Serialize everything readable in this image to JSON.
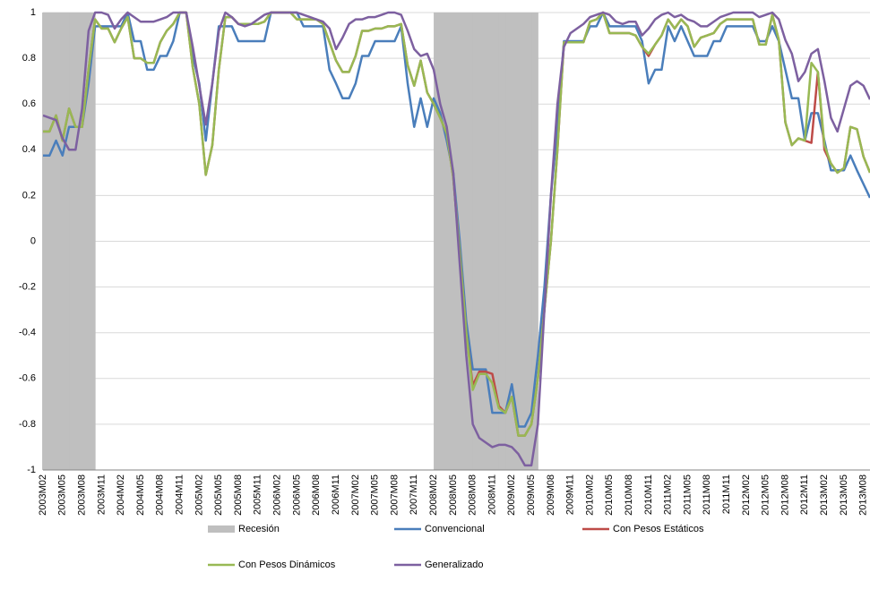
{
  "chart_data": {
    "type": "line",
    "categories": [
      "2003M02",
      null,
      null,
      "2003M05",
      null,
      null,
      "2003M08",
      null,
      null,
      "2003M11",
      null,
      null,
      "2004M02",
      null,
      null,
      "2004M05",
      null,
      null,
      "2004M08",
      null,
      null,
      "2004M11",
      null,
      null,
      "2005M02",
      null,
      null,
      "2005M05",
      null,
      null,
      "2005M08",
      null,
      null,
      "2005M11",
      null,
      null,
      "2006M02",
      null,
      null,
      "2006M05",
      null,
      null,
      "2006M08",
      null,
      null,
      "2006M11",
      null,
      null,
      "2007M02",
      null,
      null,
      "2007M05",
      null,
      null,
      "2007M08",
      null,
      null,
      "2007M11",
      null,
      null,
      "2008M02",
      null,
      null,
      "2008M05",
      null,
      null,
      "2008M08",
      null,
      null,
      "2008M11",
      null,
      null,
      "2009M02",
      null,
      null,
      "2009M05",
      null,
      null,
      "2009M08",
      null,
      null,
      "2009M11",
      null,
      null,
      "2010M02",
      null,
      null,
      "2010M05",
      null,
      null,
      "2010M08",
      null,
      null,
      "2010M11",
      null,
      null,
      "2011M02",
      null,
      null,
      "2011M05",
      null,
      null,
      "2011M08",
      null,
      null,
      "2011M11",
      null,
      null,
      "2012M02",
      null,
      null,
      "2012M05",
      null,
      null,
      "2012M08",
      null,
      null,
      "2012M11",
      null,
      null,
      "2013M02",
      null,
      null,
      "2013M05",
      null,
      null,
      "2013M08",
      null
    ],
    "series": [
      {
        "name": "Recesión",
        "type": "bar",
        "color": "#bfbfbf",
        "values": [
          1,
          1,
          1,
          1,
          1,
          1,
          1,
          1,
          null,
          null,
          null,
          null,
          null,
          null,
          null,
          null,
          null,
          null,
          null,
          null,
          null,
          null,
          null,
          null,
          null,
          null,
          null,
          null,
          null,
          null,
          null,
          null,
          null,
          null,
          null,
          null,
          null,
          null,
          null,
          null,
          null,
          null,
          null,
          null,
          null,
          null,
          null,
          null,
          null,
          null,
          null,
          null,
          null,
          null,
          null,
          null,
          null,
          null,
          null,
          null,
          1,
          1,
          1,
          1,
          1,
          1,
          1,
          1,
          1,
          1,
          1,
          1,
          1,
          1,
          1,
          1,
          null,
          null,
          null,
          null,
          null,
          null,
          null,
          null,
          null,
          null,
          null,
          null,
          null,
          null,
          null,
          null,
          null,
          null,
          null,
          null,
          null,
          null,
          null,
          null,
          null,
          null,
          null,
          null,
          null,
          null,
          null,
          null,
          null,
          null,
          null,
          null,
          null,
          null,
          null,
          null,
          null,
          null,
          null,
          null,
          null,
          null,
          null,
          null,
          null,
          null,
          null,
          null
        ]
      },
      {
        "name": "Convencional",
        "type": "line",
        "color": "#4a7ebb",
        "values": [
          0.375,
          0.375,
          0.44,
          0.375,
          0.5,
          0.5,
          0.5,
          0.69,
          0.94,
          0.94,
          0.94,
          0.94,
          0.94,
          1,
          0.875,
          0.875,
          0.75,
          0.75,
          0.81,
          0.81,
          0.875,
          1,
          1,
          0.81,
          0.69,
          0.44,
          0.69,
          0.94,
          0.94,
          0.94,
          0.875,
          0.875,
          0.875,
          0.875,
          0.875,
          1,
          1,
          1,
          1,
          1,
          0.94,
          0.94,
          0.94,
          0.94,
          0.75,
          0.69,
          0.625,
          0.625,
          0.69,
          0.81,
          0.81,
          0.875,
          0.875,
          0.875,
          0.875,
          0.94,
          0.69,
          0.5,
          0.625,
          0.5,
          0.625,
          0.56,
          0.44,
          0.3,
          0,
          -0.35,
          -0.56,
          -0.56,
          -0.56,
          -0.75,
          -0.75,
          -0.75,
          -0.625,
          -0.81,
          -0.81,
          -0.75,
          -0.5,
          -0.2,
          0.2,
          0.5,
          0.875,
          0.875,
          0.875,
          0.875,
          0.94,
          0.94,
          1,
          0.94,
          0.94,
          0.94,
          0.94,
          0.94,
          0.875,
          0.69,
          0.75,
          0.75,
          0.94,
          0.875,
          0.94,
          0.875,
          0.81,
          0.81,
          0.81,
          0.875,
          0.875,
          0.94,
          0.94,
          0.94,
          0.94,
          0.94,
          0.875,
          0.875,
          0.94,
          0.875,
          0.75,
          0.625,
          0.625,
          0.44,
          0.56,
          0.56,
          0.44,
          0.31,
          0.31,
          0.31,
          0.375,
          0.31,
          0.25,
          0.19
        ]
      },
      {
        "name": "Con Pesos Estáticos",
        "type": "line",
        "color": "#be4b48",
        "values": [
          0.48,
          0.48,
          0.55,
          0.44,
          0.58,
          0.5,
          0.5,
          0.75,
          0.97,
          0.93,
          0.93,
          0.87,
          0.93,
          0.98,
          0.8,
          0.8,
          0.78,
          0.78,
          0.87,
          0.92,
          0.95,
          1,
          1,
          0.76,
          0.6,
          0.29,
          0.42,
          0.75,
          0.98,
          0.98,
          0.95,
          0.95,
          0.95,
          0.95,
          0.96,
          1,
          1,
          1,
          1,
          0.97,
          0.97,
          0.97,
          0.97,
          0.95,
          0.87,
          0.79,
          0.74,
          0.74,
          0.81,
          0.92,
          0.92,
          0.93,
          0.93,
          0.94,
          0.94,
          0.95,
          0.77,
          0.68,
          0.79,
          0.65,
          0.6,
          0.54,
          0.47,
          0.28,
          -0.05,
          -0.4,
          -0.63,
          -0.57,
          -0.57,
          -0.58,
          -0.72,
          -0.75,
          -0.68,
          -0.85,
          -0.85,
          -0.8,
          -0.6,
          -0.3,
          0,
          0.4,
          0.87,
          0.87,
          0.87,
          0.87,
          0.96,
          0.97,
          1,
          0.91,
          0.91,
          0.91,
          0.91,
          0.9,
          0.85,
          0.81,
          0.86,
          0.9,
          0.97,
          0.93,
          0.97,
          0.94,
          0.85,
          0.89,
          0.9,
          0.91,
          0.95,
          0.97,
          0.97,
          0.97,
          0.97,
          0.97,
          0.86,
          0.86,
          0.99,
          0.88,
          0.52,
          0.42,
          0.45,
          0.44,
          0.43,
          0.74,
          0.4,
          0.34,
          0.3,
          0.32,
          0.5,
          0.49,
          0.37,
          0.3
        ]
      },
      {
        "name": "Con Pesos Dinámicos",
        "type": "line",
        "color": "#98b954",
        "values": [
          0.48,
          0.48,
          0.55,
          0.44,
          0.58,
          0.5,
          0.5,
          0.75,
          0.97,
          0.93,
          0.93,
          0.87,
          0.93,
          0.98,
          0.8,
          0.8,
          0.78,
          0.78,
          0.87,
          0.92,
          0.95,
          1,
          1,
          0.76,
          0.6,
          0.29,
          0.42,
          0.75,
          0.98,
          0.98,
          0.95,
          0.95,
          0.95,
          0.95,
          0.96,
          1,
          1,
          1,
          1,
          0.97,
          0.97,
          0.97,
          0.97,
          0.95,
          0.87,
          0.79,
          0.74,
          0.74,
          0.81,
          0.92,
          0.92,
          0.93,
          0.93,
          0.94,
          0.94,
          0.95,
          0.77,
          0.68,
          0.79,
          0.65,
          0.6,
          0.54,
          0.47,
          0.28,
          -0.05,
          -0.4,
          -0.65,
          -0.58,
          -0.58,
          -0.62,
          -0.73,
          -0.75,
          -0.68,
          -0.85,
          -0.85,
          -0.8,
          -0.6,
          -0.3,
          0,
          0.4,
          0.87,
          0.87,
          0.87,
          0.87,
          0.96,
          0.97,
          1,
          0.91,
          0.91,
          0.91,
          0.91,
          0.9,
          0.85,
          0.82,
          0.86,
          0.9,
          0.97,
          0.93,
          0.97,
          0.94,
          0.85,
          0.89,
          0.9,
          0.91,
          0.95,
          0.97,
          0.97,
          0.97,
          0.97,
          0.97,
          0.86,
          0.86,
          0.99,
          0.88,
          0.52,
          0.42,
          0.45,
          0.44,
          0.78,
          0.74,
          0.42,
          0.34,
          0.3,
          0.32,
          0.5,
          0.49,
          0.37,
          0.3
        ]
      },
      {
        "name": "Generalizado",
        "type": "line",
        "color": "#7d60a0",
        "values": [
          0.55,
          0.54,
          0.53,
          0.45,
          0.4,
          0.4,
          0.58,
          0.92,
          1,
          1,
          0.99,
          0.93,
          0.97,
          1,
          0.98,
          0.96,
          0.96,
          0.96,
          0.97,
          0.98,
          1,
          1,
          1,
          0.85,
          0.68,
          0.51,
          0.69,
          0.92,
          1,
          0.98,
          0.95,
          0.94,
          0.95,
          0.97,
          0.99,
          1,
          1,
          1,
          1,
          1,
          0.99,
          0.98,
          0.97,
          0.96,
          0.93,
          0.84,
          0.89,
          0.95,
          0.97,
          0.97,
          0.98,
          0.98,
          0.99,
          1,
          1,
          0.99,
          0.92,
          0.84,
          0.81,
          0.82,
          0.75,
          0.6,
          0.5,
          0.3,
          -0.1,
          -0.5,
          -0.8,
          -0.86,
          -0.88,
          -0.9,
          -0.89,
          -0.89,
          -0.9,
          -0.93,
          -0.98,
          -0.98,
          -0.8,
          -0.3,
          0.2,
          0.6,
          0.85,
          0.91,
          0.93,
          0.95,
          0.98,
          0.99,
          1,
          0.99,
          0.96,
          0.95,
          0.96,
          0.96,
          0.9,
          0.93,
          0.97,
          0.99,
          1,
          0.98,
          0.99,
          0.97,
          0.96,
          0.94,
          0.94,
          0.96,
          0.98,
          0.99,
          1,
          1,
          1,
          1,
          0.98,
          0.99,
          1,
          0.97,
          0.88,
          0.82,
          0.7,
          0.74,
          0.82,
          0.84,
          0.7,
          0.54,
          0.48,
          0.58,
          0.68,
          0.7,
          0.68,
          0.62
        ]
      }
    ],
    "ylim": [
      -1,
      1
    ],
    "yticks": [
      -1,
      -0.8,
      -0.6,
      -0.4,
      -0.2,
      0,
      0.2,
      0.4,
      0.6,
      0.8,
      1
    ],
    "grid": true,
    "legend": "bottom"
  }
}
